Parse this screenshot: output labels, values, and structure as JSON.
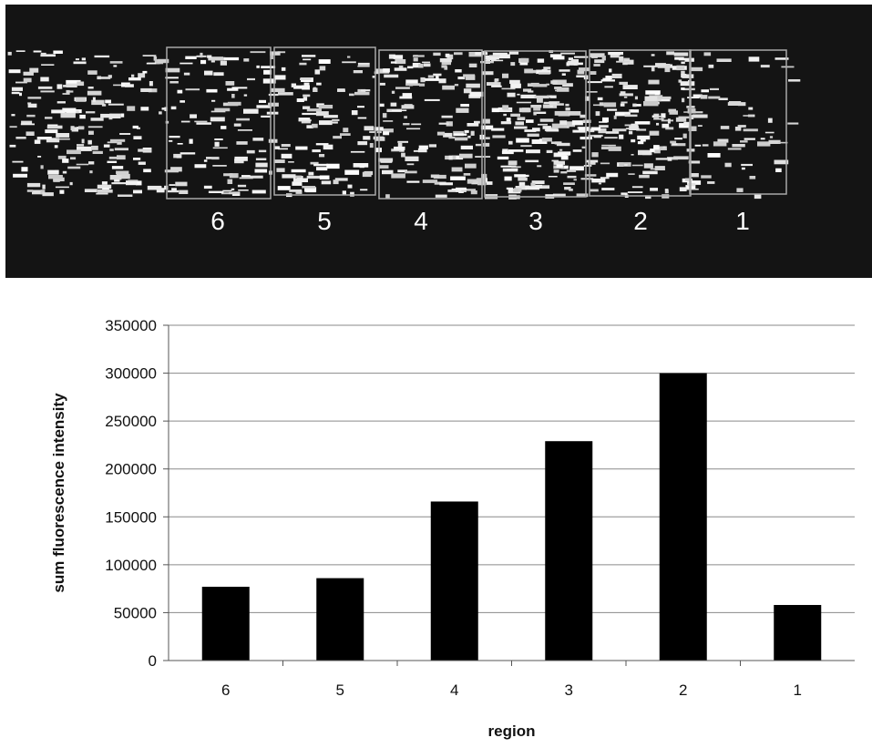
{
  "micrograph": {
    "region_labels": [
      "6",
      "5",
      "4",
      "3",
      "2",
      "1"
    ],
    "background_color": "#141414",
    "box_color": "#a8a8a8"
  },
  "chart_data": {
    "type": "bar",
    "categories": [
      "6",
      "5",
      "4",
      "3",
      "2",
      "1"
    ],
    "values": [
      77000,
      86000,
      166000,
      229000,
      300000,
      58000
    ],
    "xlabel": "region",
    "ylabel": "sum fluorescence intensity",
    "ylim": [
      0,
      350000
    ],
    "yticks": [
      0,
      50000,
      100000,
      150000,
      200000,
      250000,
      300000,
      350000
    ],
    "grid": true,
    "bar_color": "#000000"
  }
}
